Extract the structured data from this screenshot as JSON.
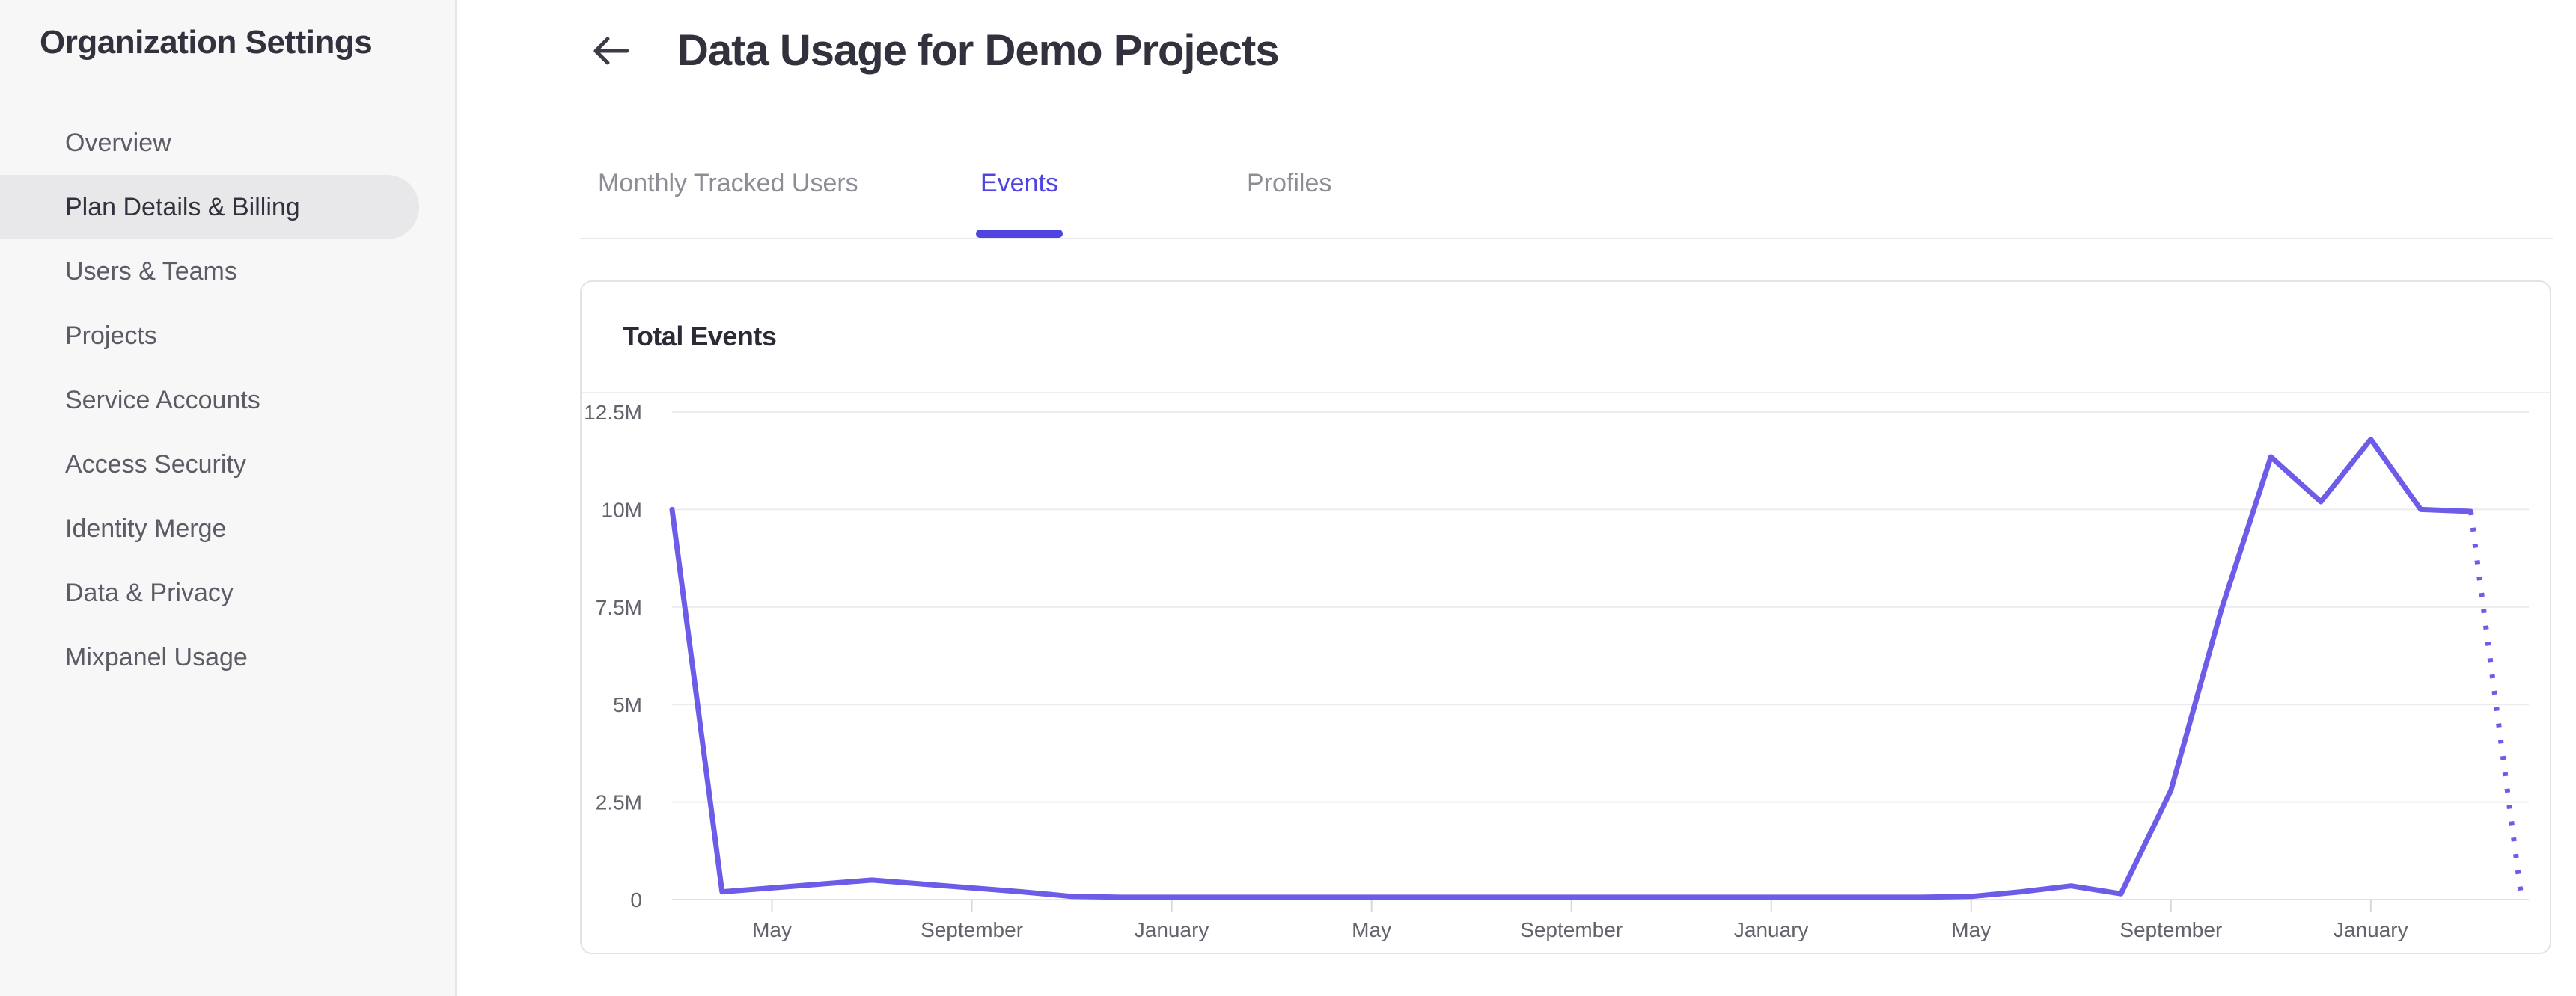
{
  "sidebar": {
    "title": "Organization Settings",
    "items": [
      {
        "label": "Overview",
        "selected": false
      },
      {
        "label": "Plan Details & Billing",
        "selected": true
      },
      {
        "label": "Users & Teams",
        "selected": false
      },
      {
        "label": "Projects",
        "selected": false
      },
      {
        "label": "Service Accounts",
        "selected": false
      },
      {
        "label": "Access Security",
        "selected": false
      },
      {
        "label": "Identity Merge",
        "selected": false
      },
      {
        "label": "Data & Privacy",
        "selected": false
      },
      {
        "label": "Mixpanel Usage",
        "selected": false
      }
    ]
  },
  "header": {
    "title": "Data Usage for Demo Projects",
    "back_icon": "left-arrow"
  },
  "tabs": [
    {
      "label": "Monthly Tracked Users",
      "active": false
    },
    {
      "label": "Events",
      "active": true
    },
    {
      "label": "Profiles",
      "active": false
    }
  ],
  "card": {
    "title": "Total Events"
  },
  "colors": {
    "accent": "#4F44E0",
    "line": "#6C5CE8",
    "sidebar_bg": "#F7F7F8",
    "selected_pill": "#E8E8EA",
    "text_dark": "#32323E",
    "text_gray": "#5C5C66",
    "grid": "#ECECEE",
    "baseline": "#E2E2E4",
    "tick": "#D8D8DA",
    "axis_label": "#63636C"
  },
  "chart_data": {
    "type": "line",
    "title": "Total Events",
    "xlabel": "",
    "ylabel": "",
    "unit": "events",
    "ylim_m": [
      0,
      12.5
    ],
    "y_tick_values_m": [
      0,
      2.5,
      5,
      7.5,
      10,
      12.5
    ],
    "y_tick_labels": [
      "0",
      "2.5M",
      "5M",
      "7.5M",
      "10M",
      "12.5M"
    ],
    "x_tick_labels": [
      "May",
      "September",
      "January",
      "May",
      "September",
      "January",
      "May",
      "September",
      "January"
    ],
    "x_tick_point_indices": [
      2,
      6,
      10,
      14,
      18,
      22,
      26,
      30,
      34
    ],
    "grid": true,
    "legend": false,
    "points": [
      {
        "month": "Mar",
        "value_m": 10.0
      },
      {
        "month": "Apr",
        "value_m": 0.2
      },
      {
        "month": "May",
        "value_m": 0.3
      },
      {
        "month": "Jun",
        "value_m": 0.4
      },
      {
        "month": "Jul",
        "value_m": 0.5
      },
      {
        "month": "Aug",
        "value_m": 0.4
      },
      {
        "month": "Sep",
        "value_m": 0.3
      },
      {
        "month": "Oct",
        "value_m": 0.2
      },
      {
        "month": "Nov",
        "value_m": 0.08
      },
      {
        "month": "Dec",
        "value_m": 0.06
      },
      {
        "month": "Jan",
        "value_m": 0.06
      },
      {
        "month": "Feb",
        "value_m": 0.06
      },
      {
        "month": "Mar",
        "value_m": 0.06
      },
      {
        "month": "Apr",
        "value_m": 0.06
      },
      {
        "month": "May",
        "value_m": 0.06
      },
      {
        "month": "Jun",
        "value_m": 0.06
      },
      {
        "month": "Jul",
        "value_m": 0.06
      },
      {
        "month": "Aug",
        "value_m": 0.06
      },
      {
        "month": "Sep",
        "value_m": 0.06
      },
      {
        "month": "Oct",
        "value_m": 0.06
      },
      {
        "month": "Nov",
        "value_m": 0.06
      },
      {
        "month": "Dec",
        "value_m": 0.06
      },
      {
        "month": "Jan",
        "value_m": 0.06
      },
      {
        "month": "Feb",
        "value_m": 0.06
      },
      {
        "month": "Mar",
        "value_m": 0.06
      },
      {
        "month": "Apr",
        "value_m": 0.06
      },
      {
        "month": "May",
        "value_m": 0.08
      },
      {
        "month": "Jun",
        "value_m": 0.2
      },
      {
        "month": "Jul",
        "value_m": 0.35
      },
      {
        "month": "Aug",
        "value_m": 0.15
      },
      {
        "month": "Sep",
        "value_m": 2.8
      },
      {
        "month": "Oct",
        "value_m": 7.4
      },
      {
        "month": "Nov",
        "value_m": 11.35
      },
      {
        "month": "Dec",
        "value_m": 10.2
      },
      {
        "month": "Jan",
        "value_m": 11.8
      },
      {
        "month": "Feb",
        "value_m": 10.0
      },
      {
        "month": "Mar",
        "value_m": 9.95
      },
      {
        "month": "Apr",
        "value_m": 0.2
      }
    ],
    "dotted_segment": {
      "from_index": 36,
      "to_index": 37
    }
  }
}
